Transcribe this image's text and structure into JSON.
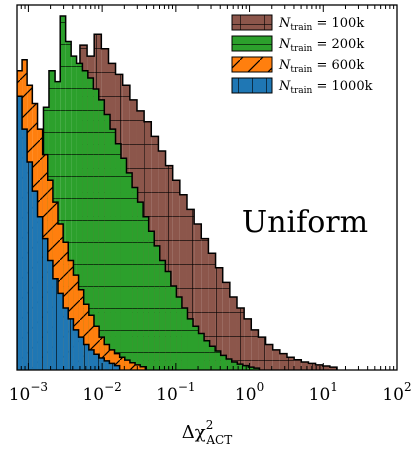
{
  "chart_data": {
    "type": "histogram",
    "title": "",
    "xlabel": "Δχ²ACT",
    "xlabel_parts": {
      "main": "Δχ",
      "sup": "2",
      "sub": "ACT"
    },
    "ylabel": "",
    "xscale": "log",
    "xlim": [
      0.0007,
      100
    ],
    "ylim": [
      0,
      1.0
    ],
    "grid": false,
    "legend_position": "top-right",
    "annotation": "Uniform",
    "x_ticks": [
      {
        "value": 0.001,
        "base": "10",
        "exp": "−3"
      },
      {
        "value": 0.01,
        "base": "10",
        "exp": "−2"
      },
      {
        "value": 0.1,
        "base": "10",
        "exp": "−1"
      },
      {
        "value": 1,
        "base": "10",
        "exp": "0"
      },
      {
        "value": 10,
        "base": "10",
        "exp": "1"
      },
      {
        "value": 100,
        "base": "10",
        "exp": "2"
      }
    ],
    "series": [
      {
        "label_main": "N",
        "label_sub": "train",
        "label_tail": " = 100k",
        "color": "#8c564b",
        "hatch": "grid",
        "edges": [
          0.005,
          0.00625,
          0.0078,
          0.00975,
          0.0122,
          0.0152,
          0.019,
          0.0238,
          0.0297,
          0.0371,
          0.0464,
          0.058,
          0.0725,
          0.0906,
          0.1133,
          0.1416,
          0.177,
          0.2212,
          0.2765,
          0.3457,
          0.4321,
          0.5401,
          0.6751,
          0.8439,
          1.0549,
          1.3186,
          1.6483,
          2.0603,
          2.5754,
          3.2193,
          4.0241,
          5.0301,
          6.2877,
          7.8596,
          9.8245,
          12.281,
          15.351
        ],
        "values": [
          0.89,
          0.86,
          0.92,
          0.88,
          0.84,
          0.81,
          0.78,
          0.74,
          0.71,
          0.68,
          0.64,
          0.6,
          0.56,
          0.52,
          0.48,
          0.44,
          0.4,
          0.36,
          0.32,
          0.28,
          0.24,
          0.2,
          0.17,
          0.14,
          0.11,
          0.09,
          0.07,
          0.055,
          0.045,
          0.035,
          0.028,
          0.022,
          0.018,
          0.014,
          0.011,
          0.008
        ]
      },
      {
        "label_main": "N",
        "label_sub": "train",
        "label_tail": " = 200k",
        "color": "#2ca02c",
        "hatch": "horizontal",
        "edges": [
          0.0016,
          0.0019,
          0.0023,
          0.0027,
          0.0032,
          0.0038,
          0.0045,
          0.0054,
          0.0064,
          0.0076,
          0.009,
          0.0107,
          0.0128,
          0.0152,
          0.018,
          0.0214,
          0.0255,
          0.0303,
          0.036,
          0.0428,
          0.0509,
          0.0605,
          0.072,
          0.0856,
          0.1017,
          0.1209,
          0.1438,
          0.1709,
          0.2032,
          0.2416,
          0.2872,
          0.3414,
          0.4059,
          0.4825,
          0.5737,
          0.682,
          0.8108,
          0.964,
          1.146,
          1.3625
        ],
        "values": [
          0.72,
          0.82,
          0.79,
          0.97,
          0.9,
          0.86,
          0.84,
          0.82,
          0.8,
          0.77,
          0.74,
          0.7,
          0.66,
          0.62,
          0.58,
          0.54,
          0.5,
          0.46,
          0.42,
          0.38,
          0.34,
          0.3,
          0.27,
          0.23,
          0.2,
          0.17,
          0.14,
          0.12,
          0.1,
          0.08,
          0.065,
          0.052,
          0.04,
          0.03,
          0.022,
          0.016,
          0.012,
          0.008,
          0.005
        ]
      },
      {
        "label_main": "N",
        "label_sub": "train",
        "label_tail": " = 600k",
        "color": "#ff7f0e",
        "hatch": "diagonal",
        "edges": [
          0.0007,
          0.00082,
          0.00096,
          0.00113,
          0.00133,
          0.00156,
          0.00183,
          0.00215,
          0.00252,
          0.00296,
          0.00347,
          0.00408,
          0.00479,
          0.00562,
          0.0066,
          0.00775,
          0.0091,
          0.01068,
          0.01254,
          0.01472,
          0.01728,
          0.02029,
          0.02382,
          0.02797,
          0.03284,
          0.03856
        ],
        "values": [
          0.82,
          0.85,
          0.78,
          0.73,
          0.66,
          0.59,
          0.52,
          0.46,
          0.4,
          0.35,
          0.3,
          0.26,
          0.22,
          0.18,
          0.15,
          0.12,
          0.09,
          0.07,
          0.055,
          0.045,
          0.035,
          0.027,
          0.02,
          0.014,
          0.009
        ]
      },
      {
        "label_main": "N",
        "label_sub": "train",
        "label_tail": " = 1000k",
        "color": "#1f77b4",
        "hatch": "vertical",
        "edges": [
          0.0007,
          0.00082,
          0.00096,
          0.00113,
          0.00133,
          0.00156,
          0.00183,
          0.00215,
          0.00252,
          0.00296,
          0.00347,
          0.00408,
          0.00479,
          0.00562,
          0.0066,
          0.00775,
          0.0091,
          0.01068,
          0.01254,
          0.01472,
          0.01728
        ],
        "values": [
          0.75,
          0.66,
          0.57,
          0.49,
          0.42,
          0.36,
          0.3,
          0.25,
          0.21,
          0.17,
          0.14,
          0.11,
          0.09,
          0.07,
          0.055,
          0.043,
          0.033,
          0.025,
          0.018,
          0.012
        ]
      }
    ]
  }
}
